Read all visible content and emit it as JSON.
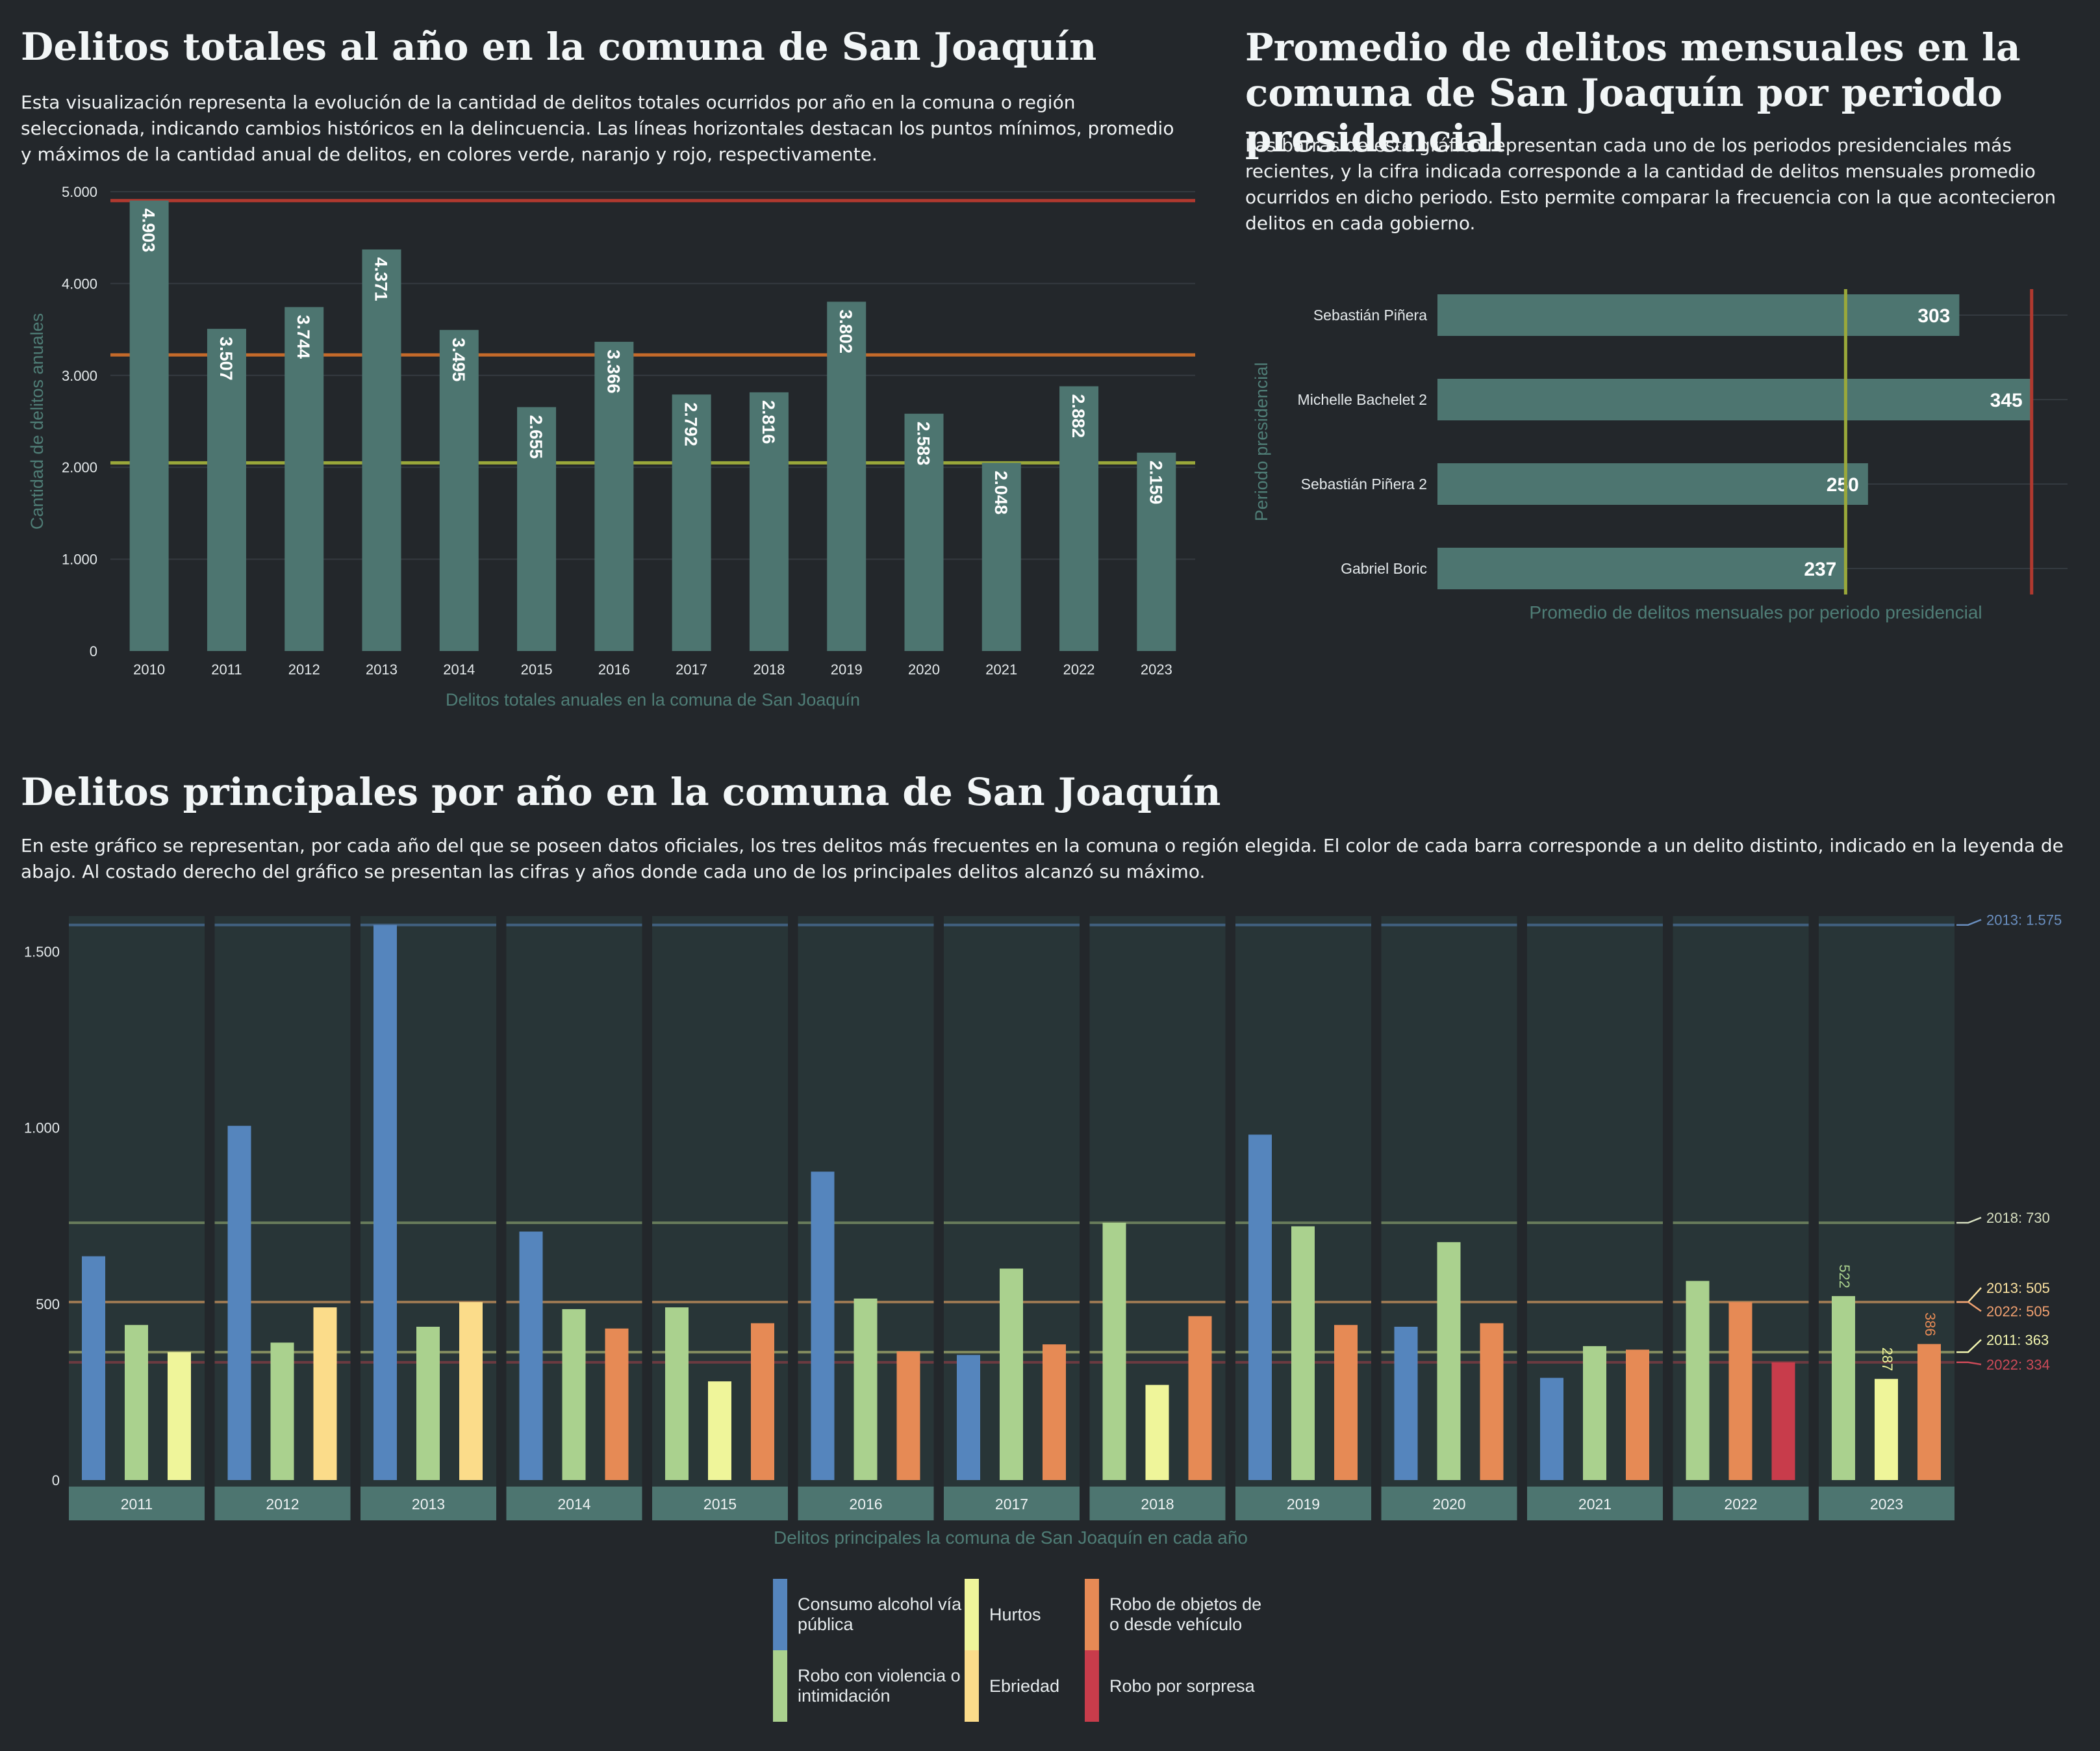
{
  "chart1": {
    "title": "Delitos totales al año en la comuna de San Joaquín",
    "description": "Esta visualización representa la evolución de la cantidad de delitos totales ocurridos por año en la comuna o región seleccionada, indicando cambios históricos en la delincuencia. Las líneas horizontales destacan los puntos mínimos, promedio y máximos de la cantidad anual de delitos, en colores verde, naranjo y rojo, respectivamente.",
    "chart_data": {
      "type": "bar",
      "categories": [
        "2010",
        "2011",
        "2012",
        "2013",
        "2014",
        "2015",
        "2016",
        "2017",
        "2018",
        "2019",
        "2020",
        "2021",
        "2022",
        "2023"
      ],
      "values": [
        4903,
        3507,
        3744,
        4371,
        3495,
        2655,
        3366,
        2792,
        2816,
        3802,
        2583,
        2048,
        2882,
        2159
      ],
      "value_labels": [
        "4.903",
        "3.507",
        "3.744",
        "4.371",
        "3.495",
        "2.655",
        "3.366",
        "2.792",
        "2.816",
        "3.802",
        "2.583",
        "2.048",
        "2.882",
        "2.159"
      ],
      "xlabel": "Delitos totales anuales en la comuna de San Joaquín",
      "ylabel": "Cantidad de delitos anuales",
      "ylim": [
        0,
        5000
      ],
      "yticks": [
        0,
        1000,
        2000,
        3000,
        4000,
        5000
      ],
      "ytick_labels": [
        "0",
        "1.000",
        "2.000",
        "3.000",
        "4.000",
        "5.000"
      ],
      "reference_lines": {
        "min": 2048,
        "mean": 3223,
        "max": 4903
      },
      "grid": true
    }
  },
  "chart2": {
    "title": "Promedio de delitos mensuales en la comuna de San Joaquín por periodo presidencial",
    "description": "Las barras de este gráfico representan cada uno de los periodos presidenciales más recientes, y la cifra indicada corresponde a la cantidad de delitos mensuales promedio ocurridos en dicho periodo. Esto permite comparar la frecuencia con la que acontecieron delitos en cada gobierno.",
    "chart_data": {
      "type": "bar",
      "orientation": "horizontal",
      "categories": [
        "Sebastián Piñera",
        "Michelle Bachelet  2",
        "Sebastián Piñera  2",
        "Gabriel Boric"
      ],
      "values": [
        303,
        345,
        250,
        237
      ],
      "xlabel": "Promedio de delitos mensuales por periodo presidencial",
      "ylabel": "Periodo presidencial",
      "xlim": [
        0,
        350
      ],
      "reference_lines": {
        "min": 237,
        "max": 345
      }
    }
  },
  "chart3": {
    "title": "Delitos principales por año en la comuna de San Joaquín",
    "description": "En este gráfico se representan, por cada año del que se poseen datos oficiales, los tres delitos más frecuentes en la comuna o región elegida. El color de cada barra corresponde a un delito distinto, indicado en la leyenda de abajo. Al costado derecho del gráfico se presentan las cifras y años donde cada uno de los principales delitos alcanzó su máximo.",
    "chart_data": {
      "type": "bar",
      "faceted": true,
      "xlabel": "Delitos principales la comuna de San Joaquín en cada año",
      "ylim": [
        0,
        1600
      ],
      "yticks": [
        0,
        500,
        1000,
        1500
      ],
      "ytick_labels": [
        "0",
        "500",
        "1.000",
        "1.500"
      ],
      "series_colors": {
        "Consumo alcohol vía pública": "#5585bd",
        "Robo con violencia o intimidación": "#aad18e",
        "Hurtos": "#eff59a",
        "Ebriedad": "#fbdc8a",
        "Robo de objetos de o desde vehículo": "#e68a55",
        "Robo por sorpresa": "#c83c4b"
      },
      "panels": [
        {
          "year": "2011",
          "bars": [
            {
              "crime": "Consumo alcohol vía pública",
              "value": 635
            },
            {
              "crime": "Robo con violencia o intimidación",
              "value": 440
            },
            {
              "crime": "Hurtos",
              "value": 363
            }
          ]
        },
        {
          "year": "2012",
          "bars": [
            {
              "crime": "Consumo alcohol vía pública",
              "value": 1005
            },
            {
              "crime": "Robo con violencia o intimidación",
              "value": 390
            },
            {
              "crime": "Ebriedad",
              "value": 490
            }
          ]
        },
        {
          "year": "2013",
          "bars": [
            {
              "crime": "Consumo alcohol vía pública",
              "value": 1575
            },
            {
              "crime": "Robo con violencia o intimidación",
              "value": 435
            },
            {
              "crime": "Ebriedad",
              "value": 505
            }
          ]
        },
        {
          "year": "2014",
          "bars": [
            {
              "crime": "Consumo alcohol vía pública",
              "value": 705
            },
            {
              "crime": "Robo con violencia o intimidación",
              "value": 485
            },
            {
              "crime": "Robo de objetos de o desde vehículo",
              "value": 430
            }
          ]
        },
        {
          "year": "2015",
          "bars": [
            {
              "crime": "Robo con violencia o intimidación",
              "value": 490
            },
            {
              "crime": "Hurtos",
              "value": 280
            },
            {
              "crime": "Robo de objetos de o desde vehículo",
              "value": 445
            }
          ]
        },
        {
          "year": "2016",
          "bars": [
            {
              "crime": "Consumo alcohol vía pública",
              "value": 875
            },
            {
              "crime": "Robo con violencia o intimidación",
              "value": 515
            },
            {
              "crime": "Robo de objetos de o desde vehículo",
              "value": 365
            }
          ]
        },
        {
          "year": "2017",
          "bars": [
            {
              "crime": "Consumo alcohol vía pública",
              "value": 355
            },
            {
              "crime": "Robo con violencia o intimidación",
              "value": 600
            },
            {
              "crime": "Robo de objetos de o desde vehículo",
              "value": 385
            }
          ]
        },
        {
          "year": "2018",
          "bars": [
            {
              "crime": "Robo con violencia o intimidación",
              "value": 730
            },
            {
              "crime": "Hurtos",
              "value": 270
            },
            {
              "crime": "Robo de objetos de o desde vehículo",
              "value": 465
            }
          ]
        },
        {
          "year": "2019",
          "bars": [
            {
              "crime": "Consumo alcohol vía pública",
              "value": 980
            },
            {
              "crime": "Robo con violencia o intimidación",
              "value": 720
            },
            {
              "crime": "Robo de objetos de o desde vehículo",
              "value": 440
            }
          ]
        },
        {
          "year": "2020",
          "bars": [
            {
              "crime": "Consumo alcohol vía pública",
              "value": 435
            },
            {
              "crime": "Robo con violencia o intimidación",
              "value": 675
            },
            {
              "crime": "Robo de objetos de o desde vehículo",
              "value": 445
            }
          ]
        },
        {
          "year": "2021",
          "bars": [
            {
              "crime": "Consumo alcohol vía pública",
              "value": 290
            },
            {
              "crime": "Robo con violencia o intimidación",
              "value": 380
            },
            {
              "crime": "Robo de objetos de o desde vehículo",
              "value": 370
            }
          ]
        },
        {
          "year": "2022",
          "bars": [
            {
              "crime": "Robo con violencia o intimidación",
              "value": 565
            },
            {
              "crime": "Robo de objetos de o desde vehículo",
              "value": 505
            },
            {
              "crime": "Robo por sorpresa",
              "value": 334
            }
          ]
        },
        {
          "year": "2023",
          "bars": [
            {
              "crime": "Robo con violencia o intimidación",
              "value": 522,
              "label": "522"
            },
            {
              "crime": "Hurtos",
              "value": 287,
              "label": "287"
            },
            {
              "crime": "Robo de objetos de o desde vehículo",
              "value": 386,
              "label": "386"
            }
          ]
        }
      ],
      "max_annotations": [
        {
          "label": "2013: 1.575",
          "value": 1575,
          "color": "#6a8fc0"
        },
        {
          "label": "2018:   730",
          "value": 730,
          "color": "#d7dfc0"
        },
        {
          "label": "2013:   505",
          "value": 505,
          "color": "#fbe2a0"
        },
        {
          "label": "2022:   505",
          "value": 505,
          "color": "#f0a070"
        },
        {
          "label": "2011:   363",
          "value": 363,
          "color": "#f3f6b0"
        },
        {
          "label": "2022:   334",
          "value": 334,
          "color": "#cc4a58"
        }
      ],
      "legend": [
        {
          "label": "Consumo alcohol vía pública",
          "color": "#5585bd"
        },
        {
          "label": "Robo con violencia o intimidación",
          "color": "#aad18e"
        },
        {
          "label": "Hurtos",
          "color": "#eff59a"
        },
        {
          "label": "Ebriedad",
          "color": "#fbdc8a"
        },
        {
          "label": "Robo de objetos de o desde vehículo",
          "color": "#e68a55"
        },
        {
          "label": "Robo por sorpresa",
          "color": "#c83c4b"
        }
      ]
    }
  }
}
